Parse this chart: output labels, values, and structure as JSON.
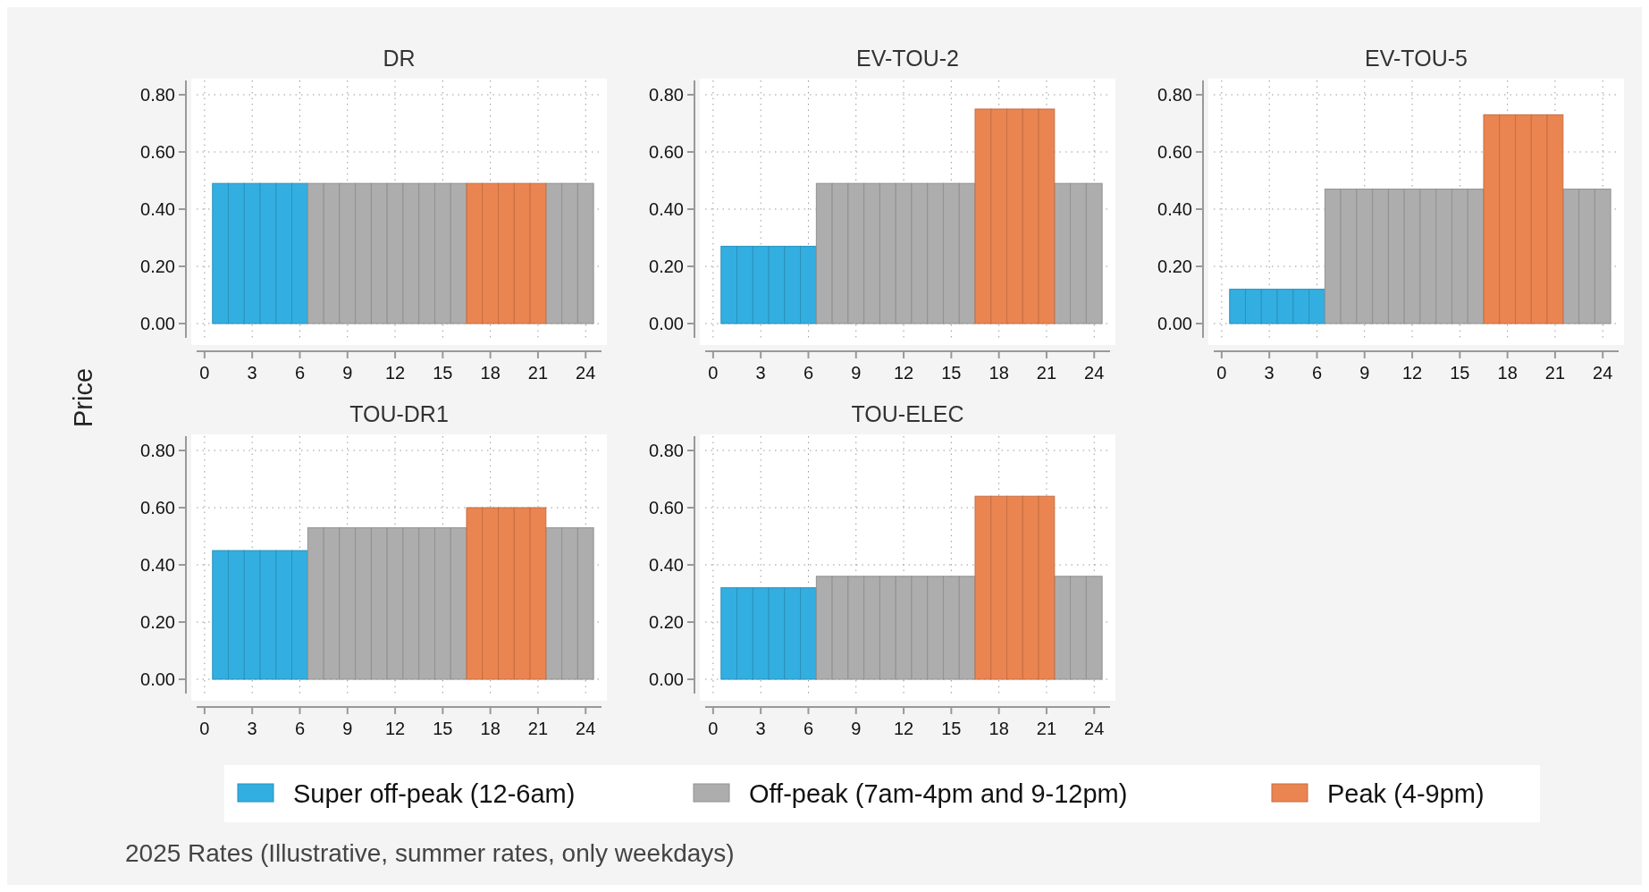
{
  "chart_data": [
    {
      "type": "bar",
      "title": "DR",
      "ylabel": "Price",
      "x": [
        1,
        2,
        3,
        4,
        5,
        6,
        7,
        8,
        9,
        10,
        11,
        12,
        13,
        14,
        15,
        16,
        17,
        18,
        19,
        20,
        21,
        22,
        23,
        24
      ],
      "xlim": [
        -0.5,
        25
      ],
      "xticks": [
        0,
        3,
        6,
        9,
        12,
        15,
        18,
        21,
        24
      ],
      "ylim": [
        -0.05,
        0.85
      ],
      "yticks": [
        {
          "value": 0,
          "label": "0.00"
        },
        {
          "value": 0.2,
          "label": "0.20"
        },
        {
          "value": 0.4,
          "label": "0.40"
        },
        {
          "value": 0.6,
          "label": "0.60"
        },
        {
          "value": 0.8,
          "label": "0.80"
        }
      ],
      "grid": true,
      "legend": "bottom",
      "annotations": [
        "2025 Rates (Illustrative, summer rates, only weekdays)"
      ],
      "series": [
        {
          "name": "Super off-peak (12-6am)",
          "color": "#33aee0",
          "values": [
            0.49,
            0.49,
            0.49,
            0.49,
            0.49,
            0.49,
            null,
            null,
            null,
            null,
            null,
            null,
            null,
            null,
            null,
            null,
            null,
            null,
            null,
            null,
            null,
            null,
            null,
            null
          ]
        },
        {
          "name": "Off-peak (7am-4pm and 9-12pm)",
          "color": "#adadad",
          "values": [
            null,
            null,
            null,
            null,
            null,
            null,
            0.49,
            0.49,
            0.49,
            0.49,
            0.49,
            0.49,
            0.49,
            0.49,
            0.49,
            0.49,
            null,
            null,
            null,
            null,
            null,
            0.49,
            0.49,
            0.49
          ]
        },
        {
          "name": "Peak (4-9pm)",
          "color": "#ea8551",
          "values": [
            null,
            null,
            null,
            null,
            null,
            null,
            null,
            null,
            null,
            null,
            null,
            null,
            null,
            null,
            null,
            null,
            0.49,
            0.49,
            0.49,
            0.49,
            0.49,
            null,
            null,
            null
          ]
        }
      ]
    },
    {
      "type": "bar",
      "title": "EV-TOU-2",
      "x": [
        1,
        2,
        3,
        4,
        5,
        6,
        7,
        8,
        9,
        10,
        11,
        12,
        13,
        14,
        15,
        16,
        17,
        18,
        19,
        20,
        21,
        22,
        23,
        24
      ],
      "xlim": [
        -0.5,
        25
      ],
      "xticks": [
        0,
        3,
        6,
        9,
        12,
        15,
        18,
        21,
        24
      ],
      "ylim": [
        -0.05,
        0.85
      ],
      "yticks": [
        {
          "value": 0,
          "label": "0.00"
        },
        {
          "value": 0.2,
          "label": "0.20"
        },
        {
          "value": 0.4,
          "label": "0.40"
        },
        {
          "value": 0.6,
          "label": "0.60"
        },
        {
          "value": 0.8,
          "label": "0.80"
        }
      ],
      "grid": true,
      "series": [
        {
          "color": "#33aee0",
          "values": [
            0.27,
            0.27,
            0.27,
            0.27,
            0.27,
            0.27,
            null,
            null,
            null,
            null,
            null,
            null,
            null,
            null,
            null,
            null,
            null,
            null,
            null,
            null,
            null,
            null,
            null,
            null
          ]
        },
        {
          "color": "#adadad",
          "values": [
            null,
            null,
            null,
            null,
            null,
            null,
            0.49,
            0.49,
            0.49,
            0.49,
            0.49,
            0.49,
            0.49,
            0.49,
            0.49,
            0.49,
            null,
            null,
            null,
            null,
            null,
            0.49,
            0.49,
            0.49
          ]
        },
        {
          "color": "#ea8551",
          "values": [
            null,
            null,
            null,
            null,
            null,
            null,
            null,
            null,
            null,
            null,
            null,
            null,
            null,
            null,
            null,
            null,
            0.75,
            0.75,
            0.75,
            0.75,
            0.75,
            null,
            null,
            null
          ]
        }
      ]
    },
    {
      "type": "bar",
      "title": "EV-TOU-5",
      "x": [
        1,
        2,
        3,
        4,
        5,
        6,
        7,
        8,
        9,
        10,
        11,
        12,
        13,
        14,
        15,
        16,
        17,
        18,
        19,
        20,
        21,
        22,
        23,
        24
      ],
      "xlim": [
        -0.5,
        25
      ],
      "xticks": [
        0,
        3,
        6,
        9,
        12,
        15,
        18,
        21,
        24
      ],
      "ylim": [
        -0.05,
        0.85
      ],
      "yticks": [
        {
          "value": 0,
          "label": "0.00"
        },
        {
          "value": 0.2,
          "label": "0.20"
        },
        {
          "value": 0.4,
          "label": "0.40"
        },
        {
          "value": 0.6,
          "label": "0.60"
        },
        {
          "value": 0.8,
          "label": "0.80"
        }
      ],
      "grid": true,
      "series": [
        {
          "color": "#33aee0",
          "values": [
            0.12,
            0.12,
            0.12,
            0.12,
            0.12,
            0.12,
            null,
            null,
            null,
            null,
            null,
            null,
            null,
            null,
            null,
            null,
            null,
            null,
            null,
            null,
            null,
            null,
            null,
            null
          ]
        },
        {
          "color": "#adadad",
          "values": [
            null,
            null,
            null,
            null,
            null,
            null,
            0.47,
            0.47,
            0.47,
            0.47,
            0.47,
            0.47,
            0.47,
            0.47,
            0.47,
            0.47,
            null,
            null,
            null,
            null,
            null,
            0.47,
            0.47,
            0.47
          ]
        },
        {
          "color": "#ea8551",
          "values": [
            null,
            null,
            null,
            null,
            null,
            null,
            null,
            null,
            null,
            null,
            null,
            null,
            null,
            null,
            null,
            null,
            0.73,
            0.73,
            0.73,
            0.73,
            0.73,
            null,
            null,
            null
          ]
        }
      ]
    },
    {
      "type": "bar",
      "title": "TOU-DR1",
      "x": [
        1,
        2,
        3,
        4,
        5,
        6,
        7,
        8,
        9,
        10,
        11,
        12,
        13,
        14,
        15,
        16,
        17,
        18,
        19,
        20,
        21,
        22,
        23,
        24
      ],
      "xlim": [
        -0.5,
        25
      ],
      "xticks": [
        0,
        3,
        6,
        9,
        12,
        15,
        18,
        21,
        24
      ],
      "ylim": [
        -0.05,
        0.85
      ],
      "yticks": [
        {
          "value": 0,
          "label": "0.00"
        },
        {
          "value": 0.2,
          "label": "0.20"
        },
        {
          "value": 0.4,
          "label": "0.40"
        },
        {
          "value": 0.6,
          "label": "0.60"
        },
        {
          "value": 0.8,
          "label": "0.80"
        }
      ],
      "grid": true,
      "series": [
        {
          "color": "#33aee0",
          "values": [
            0.45,
            0.45,
            0.45,
            0.45,
            0.45,
            0.45,
            null,
            null,
            null,
            null,
            null,
            null,
            null,
            null,
            null,
            null,
            null,
            null,
            null,
            null,
            null,
            null,
            null,
            null
          ]
        },
        {
          "color": "#adadad",
          "values": [
            null,
            null,
            null,
            null,
            null,
            null,
            0.53,
            0.53,
            0.53,
            0.53,
            0.53,
            0.53,
            0.53,
            0.53,
            0.53,
            0.53,
            null,
            null,
            null,
            null,
            null,
            0.53,
            0.53,
            0.53
          ]
        },
        {
          "color": "#ea8551",
          "values": [
            null,
            null,
            null,
            null,
            null,
            null,
            null,
            null,
            null,
            null,
            null,
            null,
            null,
            null,
            null,
            null,
            0.6,
            0.6,
            0.6,
            0.6,
            0.6,
            null,
            null,
            null
          ]
        }
      ]
    },
    {
      "type": "bar",
      "title": "TOU-ELEC",
      "x": [
        1,
        2,
        3,
        4,
        5,
        6,
        7,
        8,
        9,
        10,
        11,
        12,
        13,
        14,
        15,
        16,
        17,
        18,
        19,
        20,
        21,
        22,
        23,
        24
      ],
      "xlim": [
        -0.5,
        25
      ],
      "xticks": [
        0,
        3,
        6,
        9,
        12,
        15,
        18,
        21,
        24
      ],
      "ylim": [
        -0.05,
        0.85
      ],
      "yticks": [
        {
          "value": 0,
          "label": "0.00"
        },
        {
          "value": 0.2,
          "label": "0.20"
        },
        {
          "value": 0.4,
          "label": "0.40"
        },
        {
          "value": 0.6,
          "label": "0.60"
        },
        {
          "value": 0.8,
          "label": "0.80"
        }
      ],
      "grid": true,
      "series": [
        {
          "color": "#33aee0",
          "values": [
            0.32,
            0.32,
            0.32,
            0.32,
            0.32,
            0.32,
            null,
            null,
            null,
            null,
            null,
            null,
            null,
            null,
            null,
            null,
            null,
            null,
            null,
            null,
            null,
            null,
            null,
            null
          ]
        },
        {
          "color": "#adadad",
          "values": [
            null,
            null,
            null,
            null,
            null,
            null,
            0.36,
            0.36,
            0.36,
            0.36,
            0.36,
            0.36,
            0.36,
            0.36,
            0.36,
            0.36,
            null,
            null,
            null,
            null,
            null,
            0.36,
            0.36,
            0.36
          ]
        },
        {
          "color": "#ea8551",
          "values": [
            null,
            null,
            null,
            null,
            null,
            null,
            null,
            null,
            null,
            null,
            null,
            null,
            null,
            null,
            null,
            null,
            0.64,
            0.64,
            0.64,
            0.64,
            0.64,
            null,
            null,
            null
          ]
        }
      ]
    }
  ]
}
